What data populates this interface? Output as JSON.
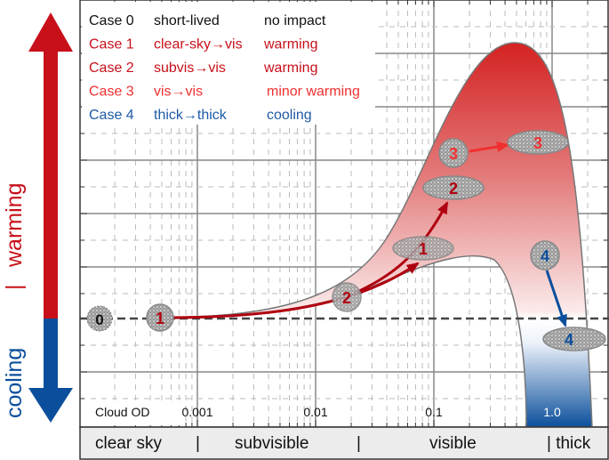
{
  "axis_labels": {
    "warming": "warming",
    "separator": "|",
    "cooling": "cooling",
    "x_title": "Cloud OD"
  },
  "x_ticks": [
    "0.001",
    "0.01",
    "0.1",
    "1.0"
  ],
  "regimes": [
    "clear sky",
    "|",
    "subvisible",
    "|",
    "visible",
    "| thick"
  ],
  "legend": [
    {
      "case": "Case 0",
      "transition": "short-lived",
      "impact": "no impact",
      "color": "#111111"
    },
    {
      "case": "Case 1",
      "transition": "clear-sky→vis",
      "impact": "warming",
      "color": "#c8101a"
    },
    {
      "case": "Case 2",
      "transition": "subvis→vis",
      "impact": "warming",
      "color": "#c8101a"
    },
    {
      "case": "Case 3",
      "transition": "vis→vis",
      "impact": "minor warming",
      "color": "#f03030"
    },
    {
      "case": "Case 4",
      "transition": "thick→thick",
      "impact": "cooling",
      "color": "#1f5aa6"
    }
  ],
  "nodes": {
    "n0": "0",
    "n1a": "1",
    "n2a": "2",
    "n1b": "1",
    "n2b": "2",
    "n3a": "3",
    "n3b": "3",
    "n4a": "4",
    "n4b": "4"
  },
  "colors": {
    "warming": "#c8101a",
    "cooling": "#0b4f9c",
    "case3": "#f03030"
  }
}
